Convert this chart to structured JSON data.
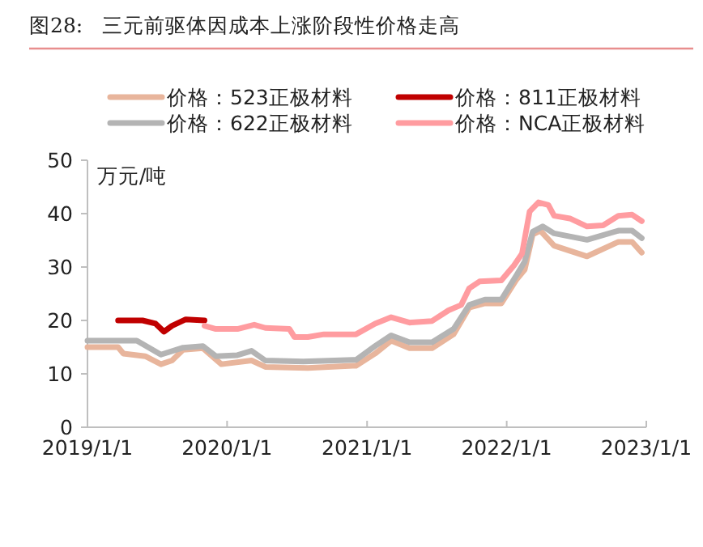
{
  "chart_data": {
    "type": "line",
    "title": "图28:   三元前驱体因成本上涨阶段性价格走高",
    "ylabel": "万元/吨",
    "xlim": [
      "2019-01-01",
      "2023-01-01"
    ],
    "xticks": [
      {
        "value": "2019-01-01",
        "label": "2019/1/1"
      },
      {
        "value": "2020-01-01",
        "label": "2020/1/1"
      },
      {
        "value": "2021-01-01",
        "label": "2021/1/1"
      },
      {
        "value": "2022-01-01",
        "label": "2022/1/1"
      },
      {
        "value": "2023-01-01",
        "label": "2023/1/1"
      }
    ],
    "ylim": [
      0,
      50
    ],
    "yticks": [
      0,
      10,
      20,
      30,
      40,
      50
    ],
    "legend": "top",
    "series": [
      {
        "name": "价格：523正极材料",
        "color": "#e8b59c",
        "x": [
          "2019-01-01",
          "2019-03-22",
          "2019-04-05",
          "2019-06-01",
          "2019-07-12",
          "2019-08-10",
          "2019-09-08",
          "2019-10-30",
          "2019-12-17",
          "2020-03-05",
          "2020-04-10",
          "2020-07-30",
          "2020-11-25",
          "2020-12-03",
          "2021-01-22",
          "2021-03-05",
          "2021-04-22",
          "2021-06-20",
          "2021-08-15",
          "2021-09-25",
          "2021-11-05",
          "2021-12-18",
          "2022-01-27",
          "2022-02-17",
          "2022-03-10",
          "2022-03-30",
          "2022-05-05",
          "2022-07-30",
          "2022-10-20",
          "2022-11-25",
          "2022-12-20"
        ],
        "values": [
          15,
          15,
          13.8,
          13.3,
          11.8,
          12.5,
          14.5,
          14.8,
          11.8,
          12.5,
          11.3,
          11.1,
          11.5,
          11.5,
          13.8,
          16.2,
          14.8,
          14.8,
          17.4,
          22.4,
          23.2,
          23.2,
          27.7,
          29.5,
          36.1,
          36.8,
          34.0,
          32.0,
          34.7,
          34.7,
          32.7
        ]
      },
      {
        "name": "价格：811正极材料",
        "color": "#c00000",
        "x": [
          "2019-03-22",
          "2019-05-25",
          "2019-06-28",
          "2019-07-20",
          "2019-08-10",
          "2019-09-15",
          "2019-11-03"
        ],
        "values": [
          20.0,
          20.0,
          19.4,
          17.9,
          19.0,
          20.2,
          20.0
        ]
      },
      {
        "name": "价格：622正极材料",
        "color": "#b4b4b4",
        "x": [
          "2019-01-01",
          "2019-05-10",
          "2019-07-12",
          "2019-09-08",
          "2019-10-30",
          "2019-12-03",
          "2020-01-28",
          "2020-03-05",
          "2020-04-10",
          "2020-07-18",
          "2020-11-25",
          "2020-12-03",
          "2021-01-22",
          "2021-03-05",
          "2021-04-22",
          "2021-06-20",
          "2021-08-15",
          "2021-09-25",
          "2021-11-05",
          "2021-12-18",
          "2022-01-27",
          "2022-02-17",
          "2022-03-10",
          "2022-04-05",
          "2022-05-05",
          "2022-07-30",
          "2022-10-20",
          "2022-11-25",
          "2022-12-20"
        ],
        "values": [
          16.2,
          16.2,
          13.6,
          14.9,
          15.2,
          13.3,
          13.5,
          14.3,
          12.5,
          12.3,
          12.6,
          12.6,
          15.2,
          17.2,
          15.9,
          15.9,
          18.4,
          22.9,
          23.9,
          23.9,
          28.5,
          31.0,
          36.6,
          37.6,
          36.3,
          35.1,
          36.8,
          36.8,
          35.4
        ]
      },
      {
        "name": "价格：NCA正极材料",
        "color": "#ff9ca0",
        "x": [
          "2019-11-03",
          "2019-12-03",
          "2020-01-28",
          "2020-03-12",
          "2020-04-10",
          "2020-06-12",
          "2020-06-25",
          "2020-07-30",
          "2020-09-10",
          "2020-11-25",
          "2020-12-03",
          "2021-01-22",
          "2021-03-05",
          "2021-04-22",
          "2021-06-20",
          "2021-08-02",
          "2021-09-04",
          "2021-09-25",
          "2021-10-22",
          "2021-12-18",
          "2022-01-20",
          "2022-02-10",
          "2022-03-02",
          "2022-03-25",
          "2022-04-20",
          "2022-05-05",
          "2022-06-15",
          "2022-07-30",
          "2022-09-10",
          "2022-10-20",
          "2022-11-25",
          "2022-12-20"
        ],
        "values": [
          19.0,
          18.4,
          18.4,
          19.2,
          18.6,
          18.4,
          16.9,
          16.9,
          17.4,
          17.4,
          17.4,
          19.4,
          20.6,
          19.6,
          19.9,
          21.9,
          22.9,
          26.0,
          27.3,
          27.5,
          30.3,
          32.5,
          40.4,
          42.1,
          41.6,
          39.6,
          39.1,
          37.6,
          37.8,
          39.6,
          39.8,
          38.6
        ]
      }
    ]
  }
}
